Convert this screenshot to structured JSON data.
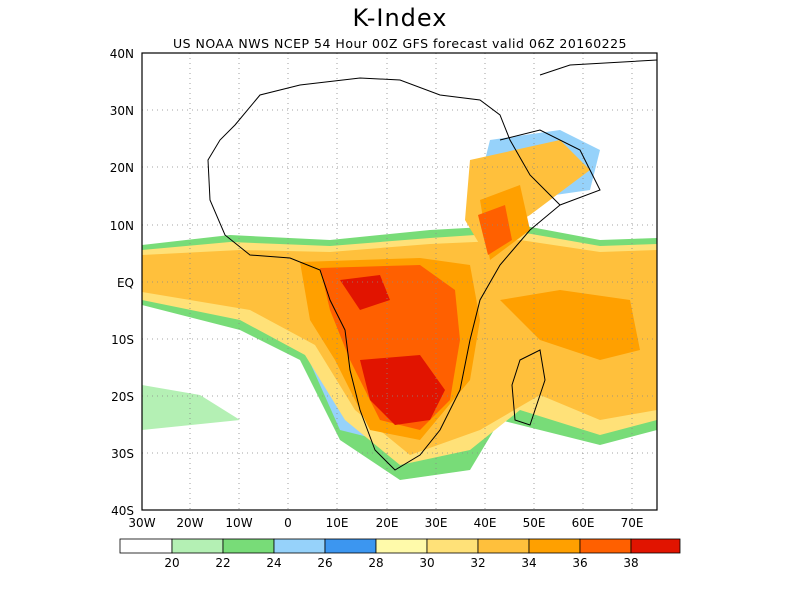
{
  "title": "K-Index",
  "subtitle": "US NOAA NWS NCEP 54 Hour 00Z GFS forecast valid 06Z 20160225",
  "map": {
    "lat_labels": [
      "40N",
      "30N",
      "20N",
      "10N",
      "EQ",
      "10S",
      "20S",
      "30S",
      "40S"
    ],
    "lon_labels": [
      "30W",
      "20W",
      "10W",
      "0",
      "10E",
      "20E",
      "30E",
      "40E",
      "50E",
      "60E",
      "70E"
    ],
    "lat_range": [
      -40,
      40
    ],
    "lon_range": [
      -30,
      70
    ],
    "grid": "dotted"
  },
  "legend": {
    "labels": [
      "20",
      "22",
      "24",
      "26",
      "28",
      "30",
      "32",
      "34",
      "36",
      "38"
    ],
    "colors": [
      "#ffffff",
      "#b4f0b4",
      "#78dc78",
      "#96d2fa",
      "#3c96f0",
      "#fffaaa",
      "#ffe178",
      "#ffc03c",
      "#ffa000",
      "#ff6000",
      "#e11400"
    ]
  }
}
